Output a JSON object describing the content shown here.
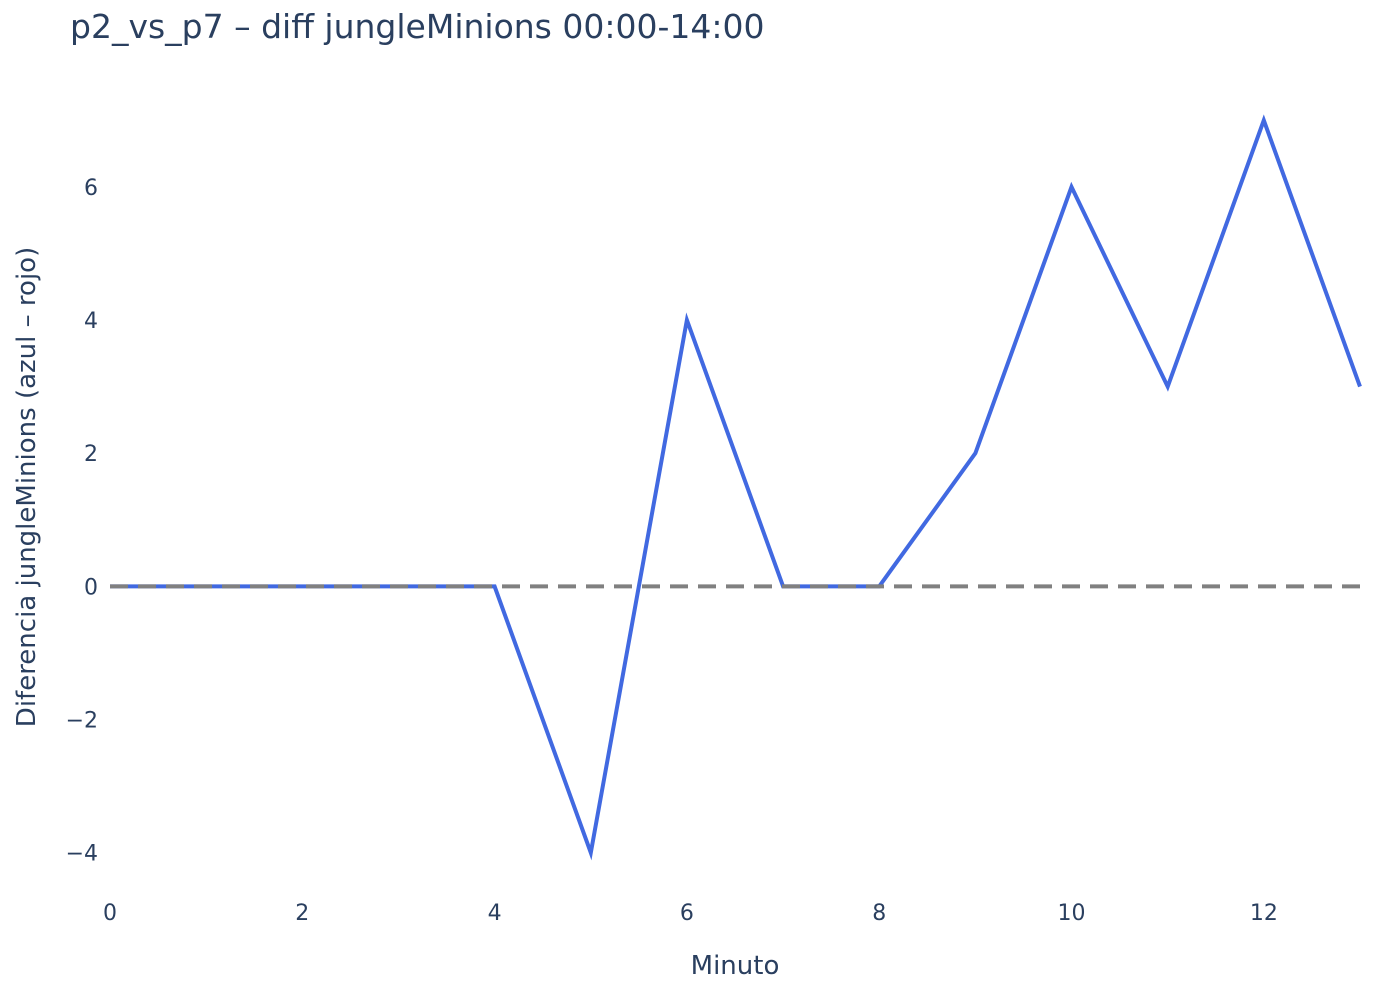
{
  "chart_data": {
    "type": "line",
    "title": "p2_vs_p7 – diff jungleMinions 00:00-14:00",
    "xlabel": "Minuto",
    "ylabel": "Diferencia jungleMinions (azul – rojo)",
    "xlim": [
      0,
      13
    ],
    "ylim": [
      -4.5,
      7.5
    ],
    "x_ticks": [
      0,
      2,
      4,
      6,
      8,
      10,
      12
    ],
    "x_tick_labels": [
      "0",
      "2",
      "4",
      "6",
      "8",
      "10",
      "12"
    ],
    "y_ticks": [
      -4,
      -2,
      0,
      2,
      4,
      6
    ],
    "y_tick_labels": [
      "−4",
      "−2",
      "0",
      "2",
      "4",
      "6"
    ],
    "grid": false,
    "legend": "none",
    "series": [
      {
        "x": [
          0,
          1,
          2,
          3,
          4,
          5,
          6,
          7,
          8,
          9,
          10,
          11,
          12,
          13
        ],
        "values": [
          0,
          0,
          0,
          0,
          0,
          -4,
          4,
          0,
          0,
          2,
          6,
          3,
          7,
          3
        ],
        "color": "#4169e1"
      }
    ],
    "reference_line": {
      "y": 0,
      "style": "dashed",
      "color": "#808080"
    }
  }
}
